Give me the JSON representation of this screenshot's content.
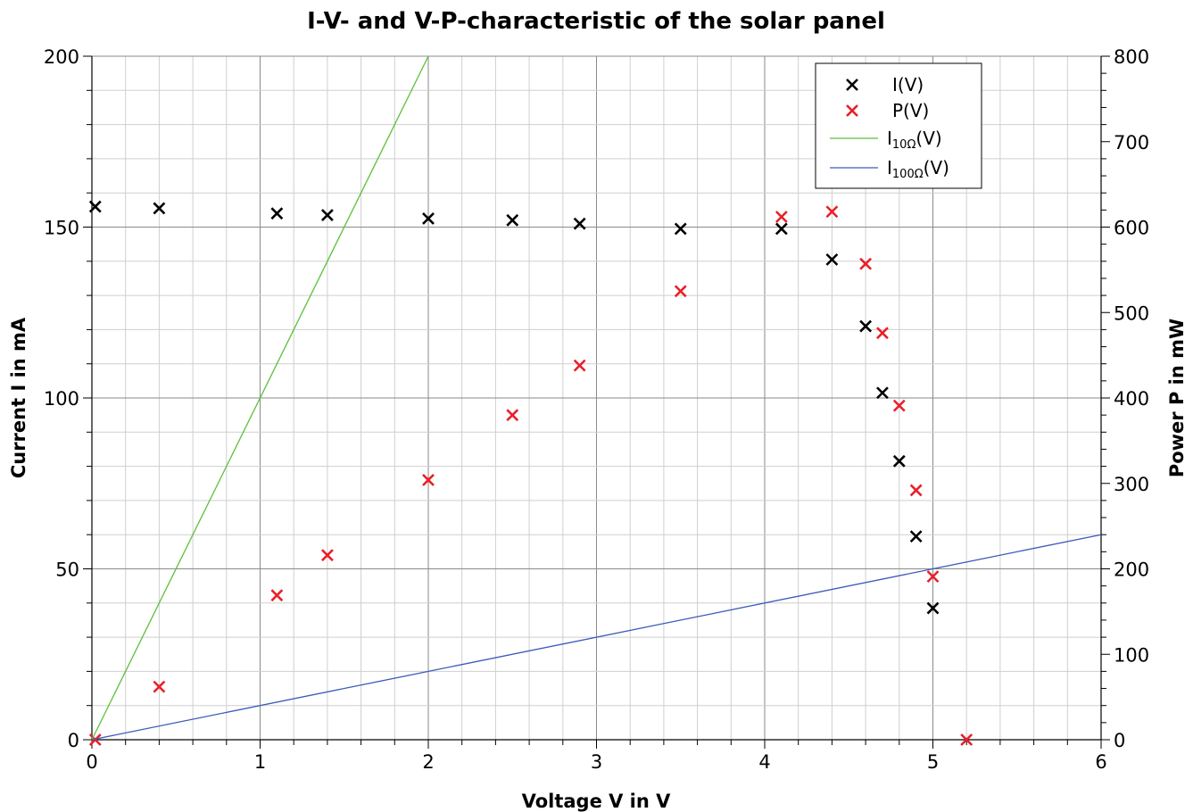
{
  "chart_data": {
    "type": "scatter",
    "title": "I-V- and V-P-characteristic of the solar panel",
    "xlabel": "Voltage V in V",
    "ylabel_left": "Current I in mA",
    "ylabel_right": "Power P in mW",
    "xlim": [
      0,
      6
    ],
    "ylim_left": [
      0,
      200
    ],
    "ylim_right": [
      0,
      800
    ],
    "x_ticks": [
      "0",
      "1",
      "2",
      "3",
      "4",
      "5",
      "6"
    ],
    "y_left_ticks": [
      "0",
      "50",
      "100",
      "150",
      "200"
    ],
    "y_right_ticks": [
      "0",
      "100",
      "200",
      "300",
      "400",
      "500",
      "600",
      "700",
      "800"
    ],
    "grid": true,
    "legend_position": "top-right",
    "series": [
      {
        "name": "I(V)",
        "axis": "left",
        "marker": "x",
        "color": "#000000",
        "x": [
          0.02,
          0.4,
          1.1,
          1.4,
          2.0,
          2.5,
          2.9,
          3.5,
          4.1,
          4.4,
          4.6,
          4.7,
          4.8,
          4.9,
          5.0
        ],
        "y": [
          156,
          155.5,
          154,
          153.5,
          152.5,
          152,
          151,
          149.5,
          149.5,
          140.5,
          121,
          101.5,
          81.5,
          59.5,
          38.5
        ]
      },
      {
        "name": "P(V)",
        "axis": "right",
        "marker": "x",
        "color": "#e8202a",
        "x": [
          0.02,
          0.4,
          1.1,
          1.4,
          2.0,
          2.5,
          2.9,
          3.5,
          4.1,
          4.4,
          4.6,
          4.7,
          4.8,
          4.9,
          5.0,
          5.2
        ],
        "y": [
          0,
          62,
          169,
          216,
          304,
          380,
          438,
          525,
          612,
          618,
          557,
          476,
          391,
          292,
          191,
          0
        ]
      },
      {
        "name_main": "I",
        "name_sub": "10Ω",
        "name_tail": "(V)",
        "axis": "left",
        "marker": "line",
        "color": "#5cbf3a",
        "x": [
          0,
          2
        ],
        "y": [
          0,
          200
        ]
      },
      {
        "name_main": "I",
        "name_sub": "100Ω",
        "name_tail": "(V)",
        "axis": "left",
        "marker": "line",
        "color": "#3a5ab8",
        "x": [
          0,
          6
        ],
        "y": [
          0,
          60
        ]
      }
    ]
  }
}
